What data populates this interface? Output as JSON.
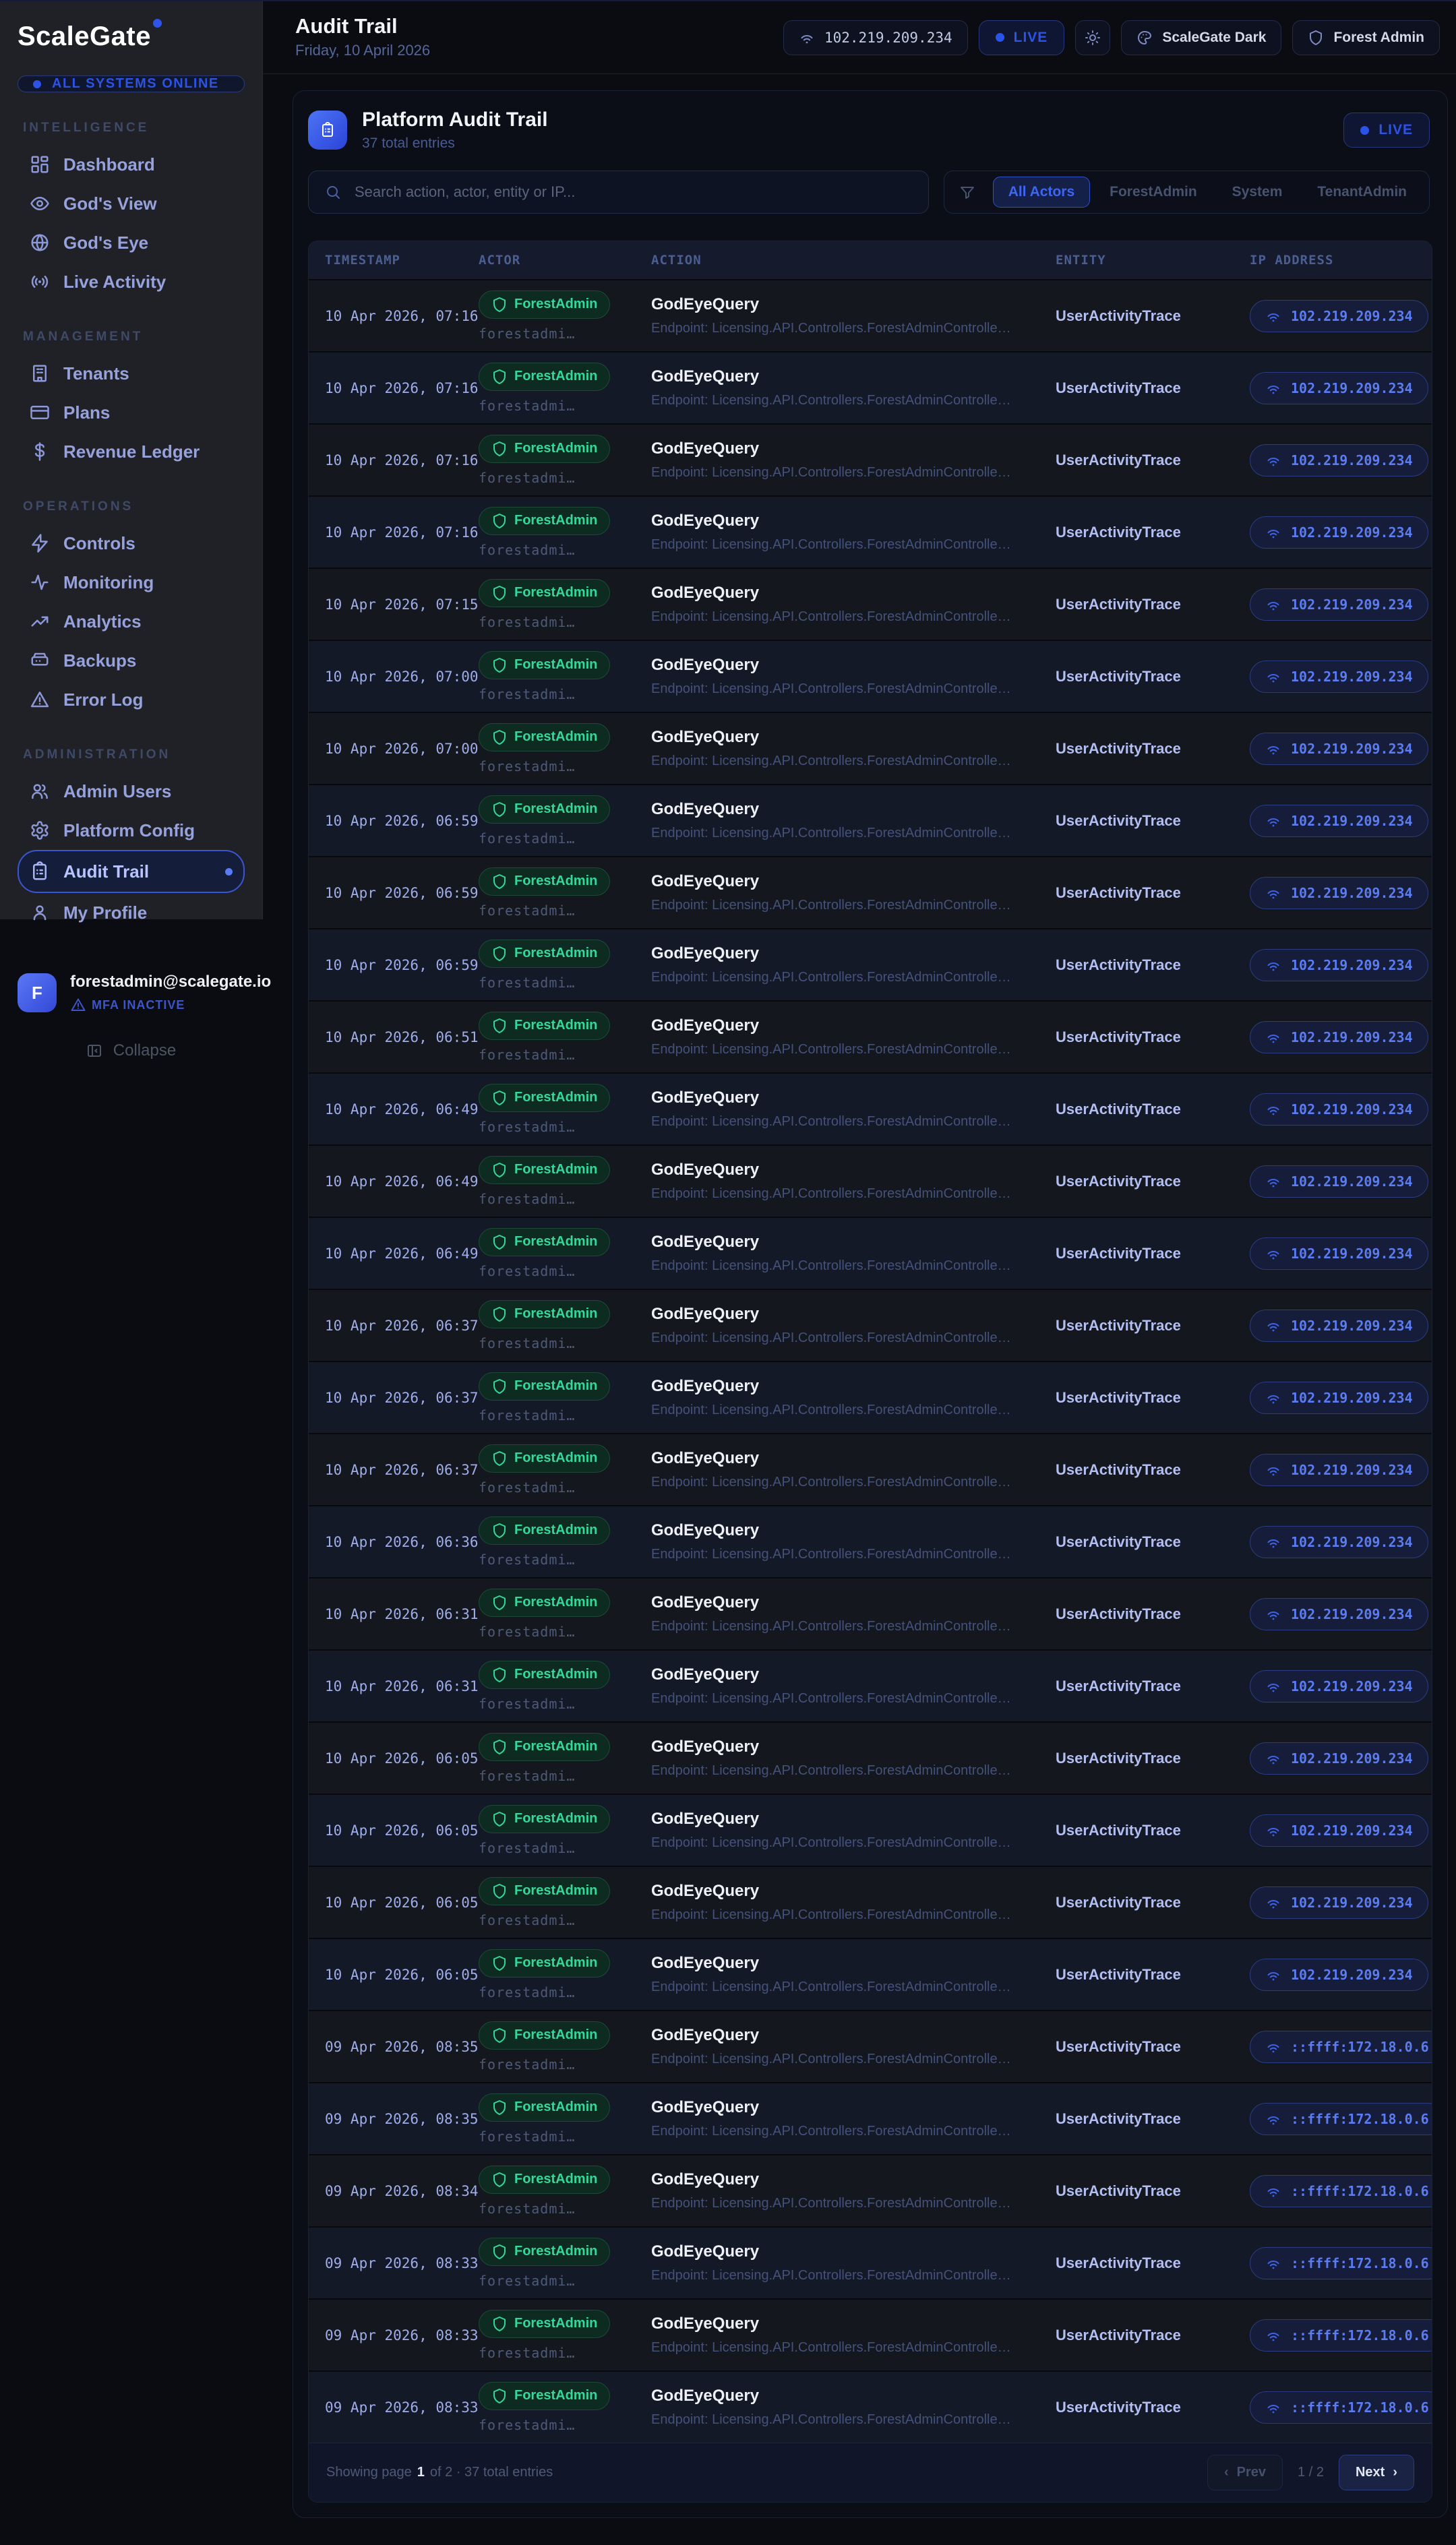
{
  "app": {
    "name": "ScaleGate",
    "status_badge": "ALL SYSTEMS ONLINE"
  },
  "sidebar": {
    "sections": [
      {
        "title": "INTELLIGENCE",
        "items": [
          {
            "label": "Dashboard",
            "icon": "grid"
          },
          {
            "label": "God's View",
            "icon": "eye"
          },
          {
            "label": "God's Eye",
            "icon": "globe"
          },
          {
            "label": "Live Activity",
            "icon": "broadcast"
          }
        ]
      },
      {
        "title": "MANAGEMENT",
        "items": [
          {
            "label": "Tenants",
            "icon": "building"
          },
          {
            "label": "Plans",
            "icon": "credit-card"
          },
          {
            "label": "Revenue Ledger",
            "icon": "dollar"
          }
        ]
      },
      {
        "title": "OPERATIONS",
        "items": [
          {
            "label": "Controls",
            "icon": "zap"
          },
          {
            "label": "Monitoring",
            "icon": "activity"
          },
          {
            "label": "Analytics",
            "icon": "trending-up"
          },
          {
            "label": "Backups",
            "icon": "server"
          },
          {
            "label": "Error Log",
            "icon": "alert-triangle"
          }
        ]
      },
      {
        "title": "ADMINISTRATION",
        "items": [
          {
            "label": "Admin Users",
            "icon": "users"
          },
          {
            "label": "Platform Config",
            "icon": "gear"
          },
          {
            "label": "Audit Trail",
            "icon": "clipboard",
            "active": true
          },
          {
            "label": "My Profile",
            "icon": "user"
          }
        ]
      }
    ],
    "user": {
      "email": "forestadmin@scalegate.io",
      "mfa": "MFA INACTIVE",
      "avatar_letter": "F"
    },
    "collapse_label": "Collapse"
  },
  "header": {
    "title": "Audit Trail",
    "date": "Friday, 10 April 2026",
    "ip": "102.219.209.234",
    "live": "LIVE",
    "theme": "ScaleGate Dark",
    "account": "Forest Admin"
  },
  "audit": {
    "title": "Platform Audit Trail",
    "subtitle": "37 total entries",
    "live": "LIVE",
    "search_placeholder": "Search action, actor, entity or IP...",
    "filters": [
      "All Actors",
      "ForestAdmin",
      "System",
      "TenantAdmin"
    ],
    "active_filter": "All Actors",
    "columns": [
      "TIMESTAMP",
      "ACTOR",
      "ACTION",
      "ENTITY",
      "IP ADDRESS"
    ],
    "rows": [
      {
        "timestamp": "10 Apr 2026, 07:16",
        "actor": "ForestAdmin",
        "actor_detail": "forestadmi…",
        "action": "GodEyeQuery",
        "action_detail": "Endpoint: Licensing.API.Controllers.ForestAdminControlle…",
        "entity": "UserActivityTrace",
        "ip": "102.219.209.234"
      },
      {
        "timestamp": "10 Apr 2026, 07:16",
        "actor": "ForestAdmin",
        "actor_detail": "forestadmi…",
        "action": "GodEyeQuery",
        "action_detail": "Endpoint: Licensing.API.Controllers.ForestAdminControlle…",
        "entity": "UserActivityTrace",
        "ip": "102.219.209.234"
      },
      {
        "timestamp": "10 Apr 2026, 07:16",
        "actor": "ForestAdmin",
        "actor_detail": "forestadmi…",
        "action": "GodEyeQuery",
        "action_detail": "Endpoint: Licensing.API.Controllers.ForestAdminControlle…",
        "entity": "UserActivityTrace",
        "ip": "102.219.209.234"
      },
      {
        "timestamp": "10 Apr 2026, 07:16",
        "actor": "ForestAdmin",
        "actor_detail": "forestadmi…",
        "action": "GodEyeQuery",
        "action_detail": "Endpoint: Licensing.API.Controllers.ForestAdminControlle…",
        "entity": "UserActivityTrace",
        "ip": "102.219.209.234"
      },
      {
        "timestamp": "10 Apr 2026, 07:15",
        "actor": "ForestAdmin",
        "actor_detail": "forestadmi…",
        "action": "GodEyeQuery",
        "action_detail": "Endpoint: Licensing.API.Controllers.ForestAdminControlle…",
        "entity": "UserActivityTrace",
        "ip": "102.219.209.234"
      },
      {
        "timestamp": "10 Apr 2026, 07:00",
        "actor": "ForestAdmin",
        "actor_detail": "forestadmi…",
        "action": "GodEyeQuery",
        "action_detail": "Endpoint: Licensing.API.Controllers.ForestAdminControlle…",
        "entity": "UserActivityTrace",
        "ip": "102.219.209.234"
      },
      {
        "timestamp": "10 Apr 2026, 07:00",
        "actor": "ForestAdmin",
        "actor_detail": "forestadmi…",
        "action": "GodEyeQuery",
        "action_detail": "Endpoint: Licensing.API.Controllers.ForestAdminControlle…",
        "entity": "UserActivityTrace",
        "ip": "102.219.209.234"
      },
      {
        "timestamp": "10 Apr 2026, 06:59",
        "actor": "ForestAdmin",
        "actor_detail": "forestadmi…",
        "action": "GodEyeQuery",
        "action_detail": "Endpoint: Licensing.API.Controllers.ForestAdminControlle…",
        "entity": "UserActivityTrace",
        "ip": "102.219.209.234"
      },
      {
        "timestamp": "10 Apr 2026, 06:59",
        "actor": "ForestAdmin",
        "actor_detail": "forestadmi…",
        "action": "GodEyeQuery",
        "action_detail": "Endpoint: Licensing.API.Controllers.ForestAdminControlle…",
        "entity": "UserActivityTrace",
        "ip": "102.219.209.234"
      },
      {
        "timestamp": "10 Apr 2026, 06:59",
        "actor": "ForestAdmin",
        "actor_detail": "forestadmi…",
        "action": "GodEyeQuery",
        "action_detail": "Endpoint: Licensing.API.Controllers.ForestAdminControlle…",
        "entity": "UserActivityTrace",
        "ip": "102.219.209.234"
      },
      {
        "timestamp": "10 Apr 2026, 06:51",
        "actor": "ForestAdmin",
        "actor_detail": "forestadmi…",
        "action": "GodEyeQuery",
        "action_detail": "Endpoint: Licensing.API.Controllers.ForestAdminControlle…",
        "entity": "UserActivityTrace",
        "ip": "102.219.209.234"
      },
      {
        "timestamp": "10 Apr 2026, 06:49",
        "actor": "ForestAdmin",
        "actor_detail": "forestadmi…",
        "action": "GodEyeQuery",
        "action_detail": "Endpoint: Licensing.API.Controllers.ForestAdminControlle…",
        "entity": "UserActivityTrace",
        "ip": "102.219.209.234"
      },
      {
        "timestamp": "10 Apr 2026, 06:49",
        "actor": "ForestAdmin",
        "actor_detail": "forestadmi…",
        "action": "GodEyeQuery",
        "action_detail": "Endpoint: Licensing.API.Controllers.ForestAdminControlle…",
        "entity": "UserActivityTrace",
        "ip": "102.219.209.234"
      },
      {
        "timestamp": "10 Apr 2026, 06:49",
        "actor": "ForestAdmin",
        "actor_detail": "forestadmi…",
        "action": "GodEyeQuery",
        "action_detail": "Endpoint: Licensing.API.Controllers.ForestAdminControlle…",
        "entity": "UserActivityTrace",
        "ip": "102.219.209.234"
      },
      {
        "timestamp": "10 Apr 2026, 06:37",
        "actor": "ForestAdmin",
        "actor_detail": "forestadmi…",
        "action": "GodEyeQuery",
        "action_detail": "Endpoint: Licensing.API.Controllers.ForestAdminControlle…",
        "entity": "UserActivityTrace",
        "ip": "102.219.209.234"
      },
      {
        "timestamp": "10 Apr 2026, 06:37",
        "actor": "ForestAdmin",
        "actor_detail": "forestadmi…",
        "action": "GodEyeQuery",
        "action_detail": "Endpoint: Licensing.API.Controllers.ForestAdminControlle…",
        "entity": "UserActivityTrace",
        "ip": "102.219.209.234"
      },
      {
        "timestamp": "10 Apr 2026, 06:37",
        "actor": "ForestAdmin",
        "actor_detail": "forestadmi…",
        "action": "GodEyeQuery",
        "action_detail": "Endpoint: Licensing.API.Controllers.ForestAdminControlle…",
        "entity": "UserActivityTrace",
        "ip": "102.219.209.234"
      },
      {
        "timestamp": "10 Apr 2026, 06:36",
        "actor": "ForestAdmin",
        "actor_detail": "forestadmi…",
        "action": "GodEyeQuery",
        "action_detail": "Endpoint: Licensing.API.Controllers.ForestAdminControlle…",
        "entity": "UserActivityTrace",
        "ip": "102.219.209.234"
      },
      {
        "timestamp": "10 Apr 2026, 06:31",
        "actor": "ForestAdmin",
        "actor_detail": "forestadmi…",
        "action": "GodEyeQuery",
        "action_detail": "Endpoint: Licensing.API.Controllers.ForestAdminControlle…",
        "entity": "UserActivityTrace",
        "ip": "102.219.209.234"
      },
      {
        "timestamp": "10 Apr 2026, 06:31",
        "actor": "ForestAdmin",
        "actor_detail": "forestadmi…",
        "action": "GodEyeQuery",
        "action_detail": "Endpoint: Licensing.API.Controllers.ForestAdminControlle…",
        "entity": "UserActivityTrace",
        "ip": "102.219.209.234"
      },
      {
        "timestamp": "10 Apr 2026, 06:05",
        "actor": "ForestAdmin",
        "actor_detail": "forestadmi…",
        "action": "GodEyeQuery",
        "action_detail": "Endpoint: Licensing.API.Controllers.ForestAdminControlle…",
        "entity": "UserActivityTrace",
        "ip": "102.219.209.234"
      },
      {
        "timestamp": "10 Apr 2026, 06:05",
        "actor": "ForestAdmin",
        "actor_detail": "forestadmi…",
        "action": "GodEyeQuery",
        "action_detail": "Endpoint: Licensing.API.Controllers.ForestAdminControlle…",
        "entity": "UserActivityTrace",
        "ip": "102.219.209.234"
      },
      {
        "timestamp": "10 Apr 2026, 06:05",
        "actor": "ForestAdmin",
        "actor_detail": "forestadmi…",
        "action": "GodEyeQuery",
        "action_detail": "Endpoint: Licensing.API.Controllers.ForestAdminControlle…",
        "entity": "UserActivityTrace",
        "ip": "102.219.209.234"
      },
      {
        "timestamp": "10 Apr 2026, 06:05",
        "actor": "ForestAdmin",
        "actor_detail": "forestadmi…",
        "action": "GodEyeQuery",
        "action_detail": "Endpoint: Licensing.API.Controllers.ForestAdminControlle…",
        "entity": "UserActivityTrace",
        "ip": "102.219.209.234"
      },
      {
        "timestamp": "09 Apr 2026, 08:35",
        "actor": "ForestAdmin",
        "actor_detail": "forestadmi…",
        "action": "GodEyeQuery",
        "action_detail": "Endpoint: Licensing.API.Controllers.ForestAdminControlle…",
        "entity": "UserActivityTrace",
        "ip": "::ffff:172.18.0.6"
      },
      {
        "timestamp": "09 Apr 2026, 08:35",
        "actor": "ForestAdmin",
        "actor_detail": "forestadmi…",
        "action": "GodEyeQuery",
        "action_detail": "Endpoint: Licensing.API.Controllers.ForestAdminControlle…",
        "entity": "UserActivityTrace",
        "ip": "::ffff:172.18.0.6"
      },
      {
        "timestamp": "09 Apr 2026, 08:34",
        "actor": "ForestAdmin",
        "actor_detail": "forestadmi…",
        "action": "GodEyeQuery",
        "action_detail": "Endpoint: Licensing.API.Controllers.ForestAdminControlle…",
        "entity": "UserActivityTrace",
        "ip": "::ffff:172.18.0.6"
      },
      {
        "timestamp": "09 Apr 2026, 08:33",
        "actor": "ForestAdmin",
        "actor_detail": "forestadmi…",
        "action": "GodEyeQuery",
        "action_detail": "Endpoint: Licensing.API.Controllers.ForestAdminControlle…",
        "entity": "UserActivityTrace",
        "ip": "::ffff:172.18.0.6"
      },
      {
        "timestamp": "09 Apr 2026, 08:33",
        "actor": "ForestAdmin",
        "actor_detail": "forestadmi…",
        "action": "GodEyeQuery",
        "action_detail": "Endpoint: Licensing.API.Controllers.ForestAdminControlle…",
        "entity": "UserActivityTrace",
        "ip": "::ffff:172.18.0.6"
      },
      {
        "timestamp": "09 Apr 2026, 08:33",
        "actor": "ForestAdmin",
        "actor_detail": "forestadmi…",
        "action": "GodEyeQuery",
        "action_detail": "Endpoint: Licensing.API.Controllers.ForestAdminControlle…",
        "entity": "UserActivityTrace",
        "ip": "::ffff:172.18.0.6"
      }
    ],
    "footer": {
      "showing_prefix": "Showing page",
      "page": "1",
      "showing_suffix": "of 2 · 37 total entries",
      "prev": "Prev",
      "page_indicator": "1 / 2",
      "next": "Next",
      "prev_chevron": "‹",
      "next_chevron": "›"
    }
  },
  "colors": {
    "accent": "#2e55e8",
    "green": "#34d89b",
    "sidebar_bg": "#1f2126",
    "page_bg": "#0a0c11"
  }
}
